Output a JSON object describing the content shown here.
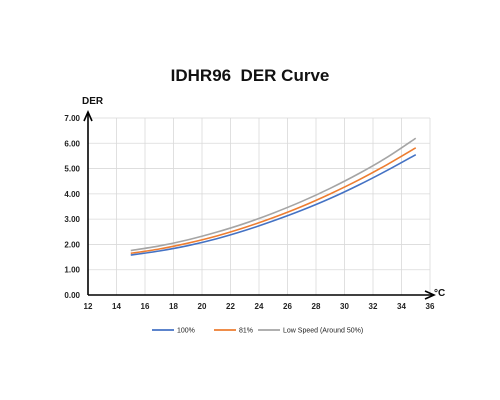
{
  "chart_data": {
    "type": "line",
    "title": "IDHR96  DER Curve",
    "ylabel": "DER",
    "xlabel": "°C",
    "xlim": [
      12,
      36
    ],
    "ylim": [
      0,
      7
    ],
    "xticks": [
      "12",
      "14",
      "16",
      "18",
      "20",
      "22",
      "24",
      "26",
      "28",
      "30",
      "32",
      "34",
      "36"
    ],
    "yticks": [
      "0.00",
      "1.00",
      "2.00",
      "3.00",
      "4.00",
      "5.00",
      "6.00",
      "7.00"
    ],
    "grid": true,
    "legend_position": "bottom",
    "series": [
      {
        "name": "100%",
        "color": "#4472C4",
        "x": [
          15,
          17,
          19,
          21,
          23,
          25,
          27,
          29,
          31,
          33,
          35
        ],
        "y": [
          1.58,
          1.74,
          1.95,
          2.22,
          2.55,
          2.93,
          3.35,
          3.82,
          4.35,
          4.93,
          5.55
        ]
      },
      {
        "name": "81%",
        "color": "#ED7D31",
        "x": [
          15,
          17,
          19,
          21,
          23,
          25,
          27,
          29,
          31,
          33,
          35
        ],
        "y": [
          1.65,
          1.82,
          2.05,
          2.33,
          2.67,
          3.06,
          3.5,
          4.0,
          4.55,
          5.16,
          5.82
        ]
      },
      {
        "name": "Low Speed (Around 50%)",
        "color": "#A5A5A5",
        "x": [
          15,
          17,
          19,
          21,
          23,
          25,
          27,
          29,
          31,
          33,
          35
        ],
        "y": [
          1.76,
          1.94,
          2.18,
          2.48,
          2.83,
          3.24,
          3.7,
          4.22,
          4.8,
          5.45,
          6.2
        ]
      }
    ]
  }
}
